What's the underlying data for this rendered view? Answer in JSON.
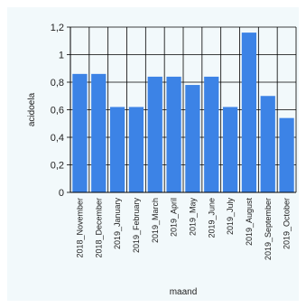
{
  "chart_data": {
    "type": "bar",
    "categories": [
      "2018_November",
      "2018_December",
      "2019_January",
      "2019_February",
      "2019_March",
      "2019_April",
      "2019_May",
      "2019_June",
      "2019_July",
      "2019_August",
      "2019_September",
      "2019_October"
    ],
    "values": [
      0.86,
      0.86,
      0.62,
      0.62,
      0.84,
      0.84,
      0.78,
      0.84,
      0.62,
      1.16,
      0.7,
      0.54
    ],
    "ylim": [
      0,
      1.2
    ],
    "yticks": [
      "0",
      "0,2",
      "0,4",
      "0,6",
      "0,8",
      "1",
      "1,2"
    ],
    "xlabel": "maand",
    "ylabel": "acidoela",
    "grid": true,
    "bar_color": "#3c83e6",
    "grid_color": "#000000"
  }
}
